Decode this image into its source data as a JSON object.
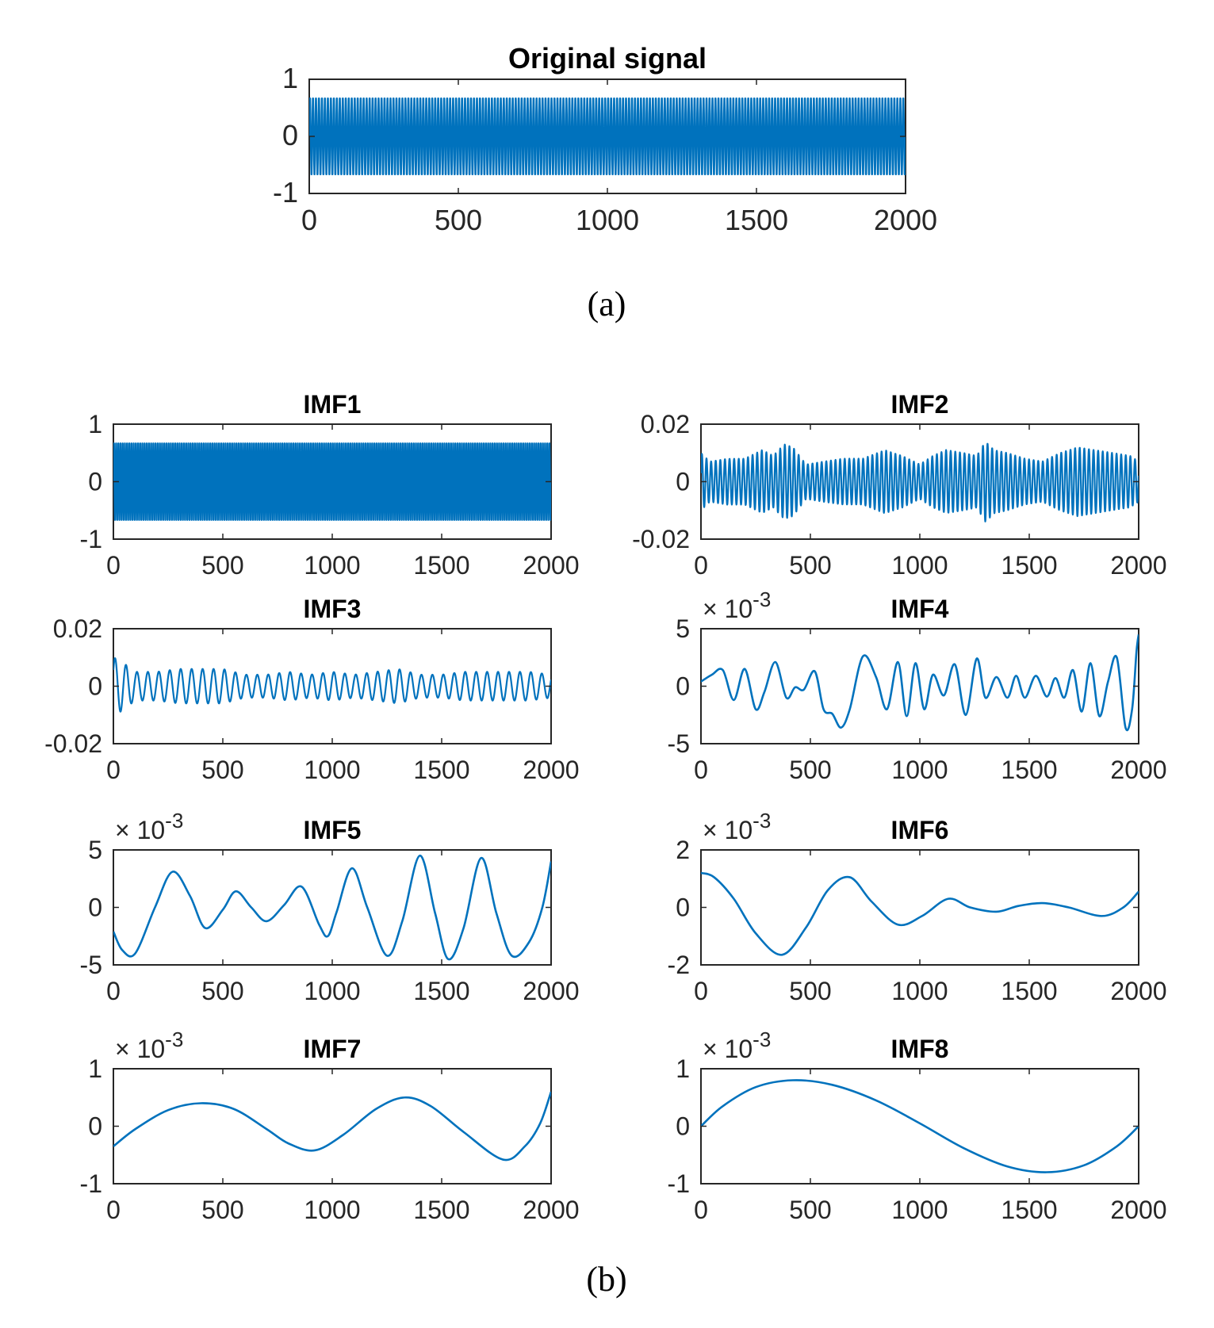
{
  "figure": {
    "caption_a": "(a)",
    "caption_b": "(b)",
    "line_color": "#0072BD"
  },
  "chart_data": [
    {
      "id": "original",
      "type": "line",
      "title": "Original signal",
      "xlabel": "",
      "ylabel": "",
      "xlim": [
        0,
        2000
      ],
      "ylim": [
        -1,
        1
      ],
      "xticks": [
        0,
        500,
        1000,
        1500,
        2000
      ],
      "xtick_labels": [
        "0",
        "500",
        "1000",
        "1500",
        "2000"
      ],
      "yticks": [
        -1,
        0,
        1
      ],
      "ytick_labels": [
        "-1",
        "0",
        "1"
      ],
      "exponent_label": "",
      "series": [
        {
          "name": "Original signal",
          "generator": "sin",
          "amplitude": 0.7,
          "cycles": 200,
          "phase": 0,
          "n_points": 2001
        }
      ]
    },
    {
      "id": "imf1",
      "type": "line",
      "title": "IMF1",
      "xlim": [
        0,
        2000
      ],
      "ylim": [
        -1,
        1
      ],
      "xticks": [
        0,
        500,
        1000,
        1500,
        2000
      ],
      "xtick_labels": [
        "0",
        "500",
        "1000",
        "1500",
        "2000"
      ],
      "yticks": [
        -1,
        0,
        1
      ],
      "ytick_labels": [
        "-1",
        "0",
        "1"
      ],
      "exponent_label": "",
      "series": [
        {
          "name": "IMF1",
          "generator": "sin",
          "amplitude": 0.7,
          "cycles": 200,
          "phase": 0,
          "n_points": 2001
        }
      ]
    },
    {
      "id": "imf2",
      "type": "line",
      "title": "IMF2",
      "xlim": [
        0,
        2000
      ],
      "ylim": [
        -0.02,
        0.02
      ],
      "xticks": [
        0,
        500,
        1000,
        1500,
        2000
      ],
      "xtick_labels": [
        "0",
        "500",
        "1000",
        "1500",
        "2000"
      ],
      "yticks": [
        -0.02,
        0,
        0.02
      ],
      "ytick_labels": [
        "-0.02",
        "0",
        "0.02"
      ],
      "exponent_label": "",
      "series": [
        {
          "name": "IMF2",
          "generator": "am_sin",
          "cycles": 95,
          "phase": 0.3,
          "n_points": 2001,
          "envelope_x": [
            0,
            40,
            120,
            200,
            280,
            330,
            380,
            420,
            480,
            560,
            650,
            740,
            840,
            920,
            1000,
            1060,
            1120,
            1200,
            1260,
            1300,
            1340,
            1400,
            1480,
            1560,
            1640,
            1720,
            1800,
            1880,
            1960,
            2000
          ],
          "envelope_y": [
            0.01,
            0.007,
            0.008,
            0.008,
            0.011,
            0.009,
            0.013,
            0.012,
            0.006,
            0.007,
            0.008,
            0.008,
            0.011,
            0.009,
            0.006,
            0.009,
            0.011,
            0.01,
            0.009,
            0.014,
            0.011,
            0.01,
            0.008,
            0.007,
            0.01,
            0.012,
            0.011,
            0.01,
            0.009,
            0.007
          ]
        }
      ]
    },
    {
      "id": "imf3",
      "type": "line",
      "title": "IMF3",
      "xlim": [
        0,
        2000
      ],
      "ylim": [
        -0.02,
        0.02
      ],
      "xticks": [
        0,
        500,
        1000,
        1500,
        2000
      ],
      "xtick_labels": [
        "0",
        "500",
        "1000",
        "1500",
        "2000"
      ],
      "yticks": [
        -0.02,
        0,
        0.02
      ],
      "ytick_labels": [
        "-0.02",
        "0",
        "0.02"
      ],
      "exponent_label": "",
      "series": [
        {
          "name": "IMF3",
          "generator": "am_sin",
          "cycles": 40,
          "phase": 0.6,
          "n_points": 2001,
          "envelope_x": [
            0,
            30,
            100,
            200,
            300,
            400,
            500,
            600,
            700,
            800,
            900,
            1000,
            1100,
            1200,
            1300,
            1400,
            1500,
            1600,
            1700,
            1800,
            1900,
            2000
          ],
          "envelope_y": [
            0.01,
            0.009,
            0.005,
            0.005,
            0.006,
            0.006,
            0.006,
            0.004,
            0.004,
            0.005,
            0.004,
            0.005,
            0.004,
            0.005,
            0.006,
            0.004,
            0.004,
            0.005,
            0.005,
            0.005,
            0.005,
            0.004
          ]
        }
      ]
    },
    {
      "id": "imf4",
      "type": "line",
      "title": "IMF4",
      "xlim": [
        0,
        2000
      ],
      "ylim": [
        -5,
        5
      ],
      "xticks": [
        0,
        500,
        1000,
        1500,
        2000
      ],
      "xtick_labels": [
        "0",
        "500",
        "1000",
        "1500",
        "2000"
      ],
      "yticks": [
        -5,
        0,
        5
      ],
      "ytick_labels": [
        "-5",
        "0",
        "5"
      ],
      "exponent_label": "× 10",
      "exponent_power": "-3",
      "series": [
        {
          "name": "IMF4",
          "generator": "points",
          "x": [
            0,
            50,
            100,
            150,
            200,
            250,
            290,
            340,
            390,
            430,
            470,
            520,
            560,
            600,
            640,
            680,
            740,
            800,
            850,
            900,
            940,
            980,
            1020,
            1060,
            1110,
            1160,
            1210,
            1260,
            1300,
            1350,
            1400,
            1440,
            1480,
            1530,
            1580,
            1620,
            1660,
            1700,
            1740,
            1780,
            1820,
            1860,
            1900,
            1940,
            1970,
            1990,
            2000
          ],
          "y": [
            0.4,
            1.0,
            1.4,
            -1.2,
            1.5,
            -2.0,
            -0.5,
            2.1,
            -1.0,
            -0.1,
            -0.3,
            1.3,
            -2.0,
            -2.4,
            -3.6,
            -2.0,
            2.6,
            0.8,
            -2.0,
            2.1,
            -2.6,
            2.0,
            -2.0,
            1.0,
            -0.8,
            1.9,
            -2.5,
            2.4,
            -1.0,
            0.8,
            -1.0,
            0.9,
            -1.0,
            0.9,
            -0.9,
            0.7,
            -1.0,
            1.4,
            -2.2,
            2.0,
            -2.6,
            0.4,
            2.5,
            -3.6,
            -2.0,
            3.0,
            4.5
          ]
        }
      ]
    },
    {
      "id": "imf5",
      "type": "line",
      "title": "IMF5",
      "xlim": [
        0,
        2000
      ],
      "ylim": [
        -5,
        5
      ],
      "xticks": [
        0,
        500,
        1000,
        1500,
        2000
      ],
      "xtick_labels": [
        "0",
        "500",
        "1000",
        "1500",
        "2000"
      ],
      "yticks": [
        -5,
        0,
        5
      ],
      "ytick_labels": [
        "-5",
        "0",
        "5"
      ],
      "exponent_label": "× 10",
      "exponent_power": "-3",
      "series": [
        {
          "name": "IMF5",
          "generator": "points",
          "x": [
            0,
            40,
            100,
            190,
            270,
            350,
            420,
            500,
            560,
            630,
            700,
            780,
            860,
            940,
            980,
            1020,
            1090,
            1160,
            1250,
            1320,
            1400,
            1470,
            1530,
            1600,
            1680,
            1750,
            1820,
            1900,
            1960,
            2000
          ],
          "y": [
            -2.1,
            -3.7,
            -4.0,
            0.0,
            3.1,
            1.0,
            -1.8,
            -0.2,
            1.4,
            0.0,
            -1.2,
            0.2,
            1.8,
            -1.5,
            -2.5,
            -0.4,
            3.4,
            0.0,
            -4.2,
            -1.2,
            4.5,
            -0.5,
            -4.5,
            -1.8,
            4.3,
            -0.5,
            -4.2,
            -3.0,
            0.0,
            4.0
          ]
        }
      ]
    },
    {
      "id": "imf6",
      "type": "line",
      "title": "IMF6",
      "xlim": [
        0,
        2000
      ],
      "ylim": [
        -2,
        2
      ],
      "xticks": [
        0,
        500,
        1000,
        1500,
        2000
      ],
      "xtick_labels": [
        "0",
        "500",
        "1000",
        "1500",
        "2000"
      ],
      "yticks": [
        -2,
        0,
        2
      ],
      "ytick_labels": [
        "-2",
        "0",
        "2"
      ],
      "exponent_label": "× 10",
      "exponent_power": "-3",
      "series": [
        {
          "name": "IMF6",
          "generator": "points",
          "x": [
            0,
            60,
            150,
            250,
            370,
            480,
            580,
            680,
            780,
            900,
            1010,
            1130,
            1230,
            1350,
            1450,
            1560,
            1680,
            1830,
            1930,
            2000
          ],
          "y": [
            1.2,
            1.05,
            0.3,
            -0.9,
            -1.65,
            -0.7,
            0.6,
            1.05,
            0.2,
            -0.6,
            -0.3,
            0.3,
            0.0,
            -0.15,
            0.05,
            0.15,
            0.0,
            -0.3,
            0.0,
            0.55
          ]
        }
      ]
    },
    {
      "id": "imf7",
      "type": "line",
      "title": "IMF7",
      "xlim": [
        0,
        2000
      ],
      "ylim": [
        -1,
        1
      ],
      "xticks": [
        0,
        500,
        1000,
        1500,
        2000
      ],
      "xtick_labels": [
        "0",
        "500",
        "1000",
        "1500",
        "2000"
      ],
      "yticks": [
        -1,
        0,
        1
      ],
      "ytick_labels": [
        "-1",
        "0",
        "1"
      ],
      "exponent_label": "× 10",
      "exponent_power": "-3",
      "series": [
        {
          "name": "IMF7",
          "generator": "points",
          "x": [
            0,
            100,
            250,
            400,
            550,
            700,
            800,
            920,
            1050,
            1200,
            1330,
            1450,
            1600,
            1780,
            1880,
            1950,
            2000
          ],
          "y": [
            -0.35,
            -0.05,
            0.28,
            0.4,
            0.3,
            -0.05,
            -0.3,
            -0.42,
            -0.15,
            0.3,
            0.5,
            0.35,
            -0.1,
            -0.58,
            -0.35,
            0.05,
            0.6
          ]
        }
      ]
    },
    {
      "id": "imf8",
      "type": "line",
      "title": "IMF8",
      "xlim": [
        0,
        2000
      ],
      "ylim": [
        -1,
        1
      ],
      "xticks": [
        0,
        500,
        1000,
        1500,
        2000
      ],
      "xtick_labels": [
        "0",
        "500",
        "1000",
        "1500",
        "2000"
      ],
      "yticks": [
        -1,
        0,
        1
      ],
      "ytick_labels": [
        "-1",
        "0",
        "1"
      ],
      "exponent_label": "× 10",
      "exponent_power": "-3",
      "series": [
        {
          "name": "IMF8",
          "generator": "points",
          "x": [
            0,
            100,
            250,
            420,
            600,
            800,
            1000,
            1200,
            1400,
            1580,
            1750,
            1900,
            2000
          ],
          "y": [
            0.0,
            0.35,
            0.68,
            0.8,
            0.72,
            0.45,
            0.05,
            -0.38,
            -0.7,
            -0.8,
            -0.68,
            -0.35,
            0.0
          ]
        }
      ]
    }
  ]
}
